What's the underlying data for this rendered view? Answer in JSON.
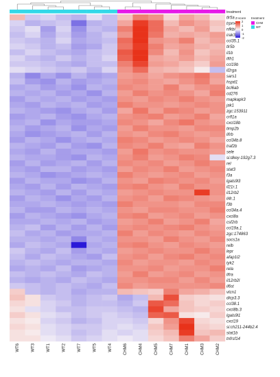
{
  "chart_data": {
    "type": "heatmap",
    "annotation_title": "treatment",
    "colorbar_title": "Z-score",
    "colorbar_ticks": [
      "2",
      "1",
      "0",
      "-1",
      "-2"
    ],
    "colorbar_range": [
      -2,
      2
    ],
    "colors": {
      "low": "#2a1ad8",
      "mid": "#f8f4f6",
      "high": "#e8321a",
      "CHM": "#e61ae8",
      "WT": "#34d8e8",
      "dendrogram": "#7a7a7a"
    },
    "legend": [
      {
        "label": "CHM",
        "color": "#e61ae8"
      },
      {
        "label": "WT",
        "color": "#34d8e8"
      }
    ],
    "columns": [
      "WT6",
      "WT3",
      "WT1",
      "WT2",
      "WT7",
      "WT5",
      "WT4",
      "CHM6",
      "CHM4",
      "CHM5",
      "CHM7",
      "CHM1",
      "CHM3",
      "CHM2"
    ],
    "column_groups": [
      "WT",
      "WT",
      "WT",
      "WT",
      "WT",
      "WT",
      "WT",
      "CHM",
      "CHM",
      "CHM",
      "CHM",
      "CHM",
      "CHM",
      "CHM"
    ],
    "rows": [
      "tlr5a",
      "trpm4a",
      "nfkbiaa",
      "irak3",
      "ccl35.1",
      "tlr5b",
      "il1b",
      "ifih1",
      "ccl19b",
      "il2rga",
      "sars1",
      "hspd1",
      "bcl6ab",
      "cd276",
      "mapkapk3",
      "jak1",
      "zgc:153911",
      "crfl1a",
      "cxcl18b",
      "timp2b",
      "lifrb",
      "ccl34b.8",
      "traf2b",
      "sele",
      "si:dkey-192g7.3",
      "rel",
      "stat3",
      "f3a",
      "lgals9l3",
      "il21r.1",
      "il12rb2",
      "il4r.1",
      "f3b",
      "ccl34a.4",
      "cxcl8a",
      "csf2rb",
      "ccl19a.1",
      "zgc:174863",
      "socs1a",
      "relb",
      "lepr",
      "afap1l2",
      "tyk2",
      "rela",
      "lifra",
      "il12rb2l",
      "il6st",
      "vtcn1",
      "dicp3.3",
      "ccl38.1",
      "cxcl8b.3",
      "lgals9l1",
      "cxcl19",
      "si:ch211-244b2.4",
      "stat1b",
      "tnfrsf14"
    ],
    "values": [
      [
        0.6,
        -0.4,
        -0.3,
        -0.5,
        -0.6,
        -0.2,
        -0.5,
        0.5,
        1.2,
        1.0,
        0.3,
        0.8,
        0.6,
        0.2
      ],
      [
        -0.3,
        -0.6,
        -0.5,
        -0.4,
        -1.2,
        -0.6,
        -0.5,
        0.8,
        1.9,
        1.4,
        0.6,
        1.0,
        0.8,
        0.5
      ],
      [
        -0.4,
        -0.2,
        -0.8,
        -0.3,
        -0.9,
        -0.5,
        -0.6,
        1.2,
        2.2,
        1.4,
        0.8,
        0.6,
        0.9,
        0.4
      ],
      [
        -0.5,
        -0.3,
        -0.7,
        -0.4,
        -0.8,
        -0.6,
        -0.4,
        1.0,
        2.3,
        1.3,
        0.7,
        0.8,
        0.7,
        0.9
      ],
      [
        -0.4,
        -0.5,
        -0.6,
        -0.3,
        -0.7,
        -0.6,
        -0.5,
        1.4,
        2.0,
        1.0,
        0.9,
        1.2,
        0.6,
        0.8
      ],
      [
        -0.3,
        -0.4,
        -0.6,
        -0.5,
        -0.8,
        -0.7,
        -0.4,
        1.3,
        1.9,
        1.2,
        0.8,
        0.9,
        0.7,
        0.6
      ],
      [
        -0.5,
        -0.3,
        -0.5,
        -0.6,
        -0.7,
        -0.5,
        -0.4,
        1.6,
        2.1,
        1.1,
        0.6,
        1.0,
        0.5,
        0.7
      ],
      [
        -0.3,
        -0.5,
        -0.6,
        -0.4,
        -0.6,
        -0.5,
        -0.3,
        1.5,
        2.0,
        0.8,
        0.7,
        0.9,
        0.6,
        0.8
      ],
      [
        -0.4,
        -0.4,
        -0.5,
        -0.6,
        -0.7,
        -0.5,
        -0.5,
        1.2,
        1.8,
        0.9,
        0.8,
        0.6,
        0.4,
        0.9
      ],
      [
        -0.2,
        -0.3,
        -0.4,
        -0.5,
        -0.4,
        -0.6,
        -0.3,
        1.0,
        1.4,
        0.7,
        0.6,
        0.5,
        0.1,
        -0.5
      ],
      [
        -0.6,
        -1.0,
        -0.7,
        -0.9,
        -0.6,
        -0.8,
        -0.7,
        0.9,
        1.0,
        0.8,
        1.0,
        1.1,
        1.3,
        0.9
      ],
      [
        -0.5,
        -0.8,
        -0.9,
        -0.6,
        -0.8,
        -0.7,
        -0.6,
        1.0,
        1.1,
        0.9,
        0.8,
        1.0,
        1.2,
        0.8
      ],
      [
        -0.7,
        -0.6,
        -0.8,
        -0.7,
        -0.9,
        -0.6,
        -0.7,
        1.1,
        1.0,
        0.9,
        1.2,
        0.8,
        1.0,
        1.1
      ],
      [
        -0.6,
        -0.7,
        -0.6,
        -0.8,
        -0.7,
        -0.9,
        -0.6,
        0.9,
        1.2,
        1.0,
        1.1,
        1.0,
        0.8,
        1.2
      ],
      [
        -0.8,
        -0.6,
        -0.7,
        -0.6,
        -0.8,
        -0.7,
        -0.8,
        1.0,
        0.9,
        1.1,
        1.0,
        1.2,
        1.0,
        0.9
      ],
      [
        -0.7,
        -0.8,
        -0.6,
        -0.7,
        -0.6,
        -0.8,
        -0.7,
        1.2,
        1.0,
        1.0,
        0.9,
        1.0,
        1.1,
        1.0
      ],
      [
        -0.6,
        -0.7,
        -0.8,
        -0.9,
        -0.7,
        -0.6,
        -0.8,
        0.8,
        1.3,
        0.9,
        1.2,
        1.1,
        0.9,
        1.0
      ],
      [
        -0.8,
        -0.7,
        -0.6,
        -0.8,
        -0.9,
        -0.7,
        -0.6,
        1.0,
        1.1,
        1.2,
        0.9,
        1.0,
        1.2,
        0.8
      ],
      [
        -0.7,
        -0.6,
        -0.9,
        -0.7,
        -0.8,
        -0.8,
        -0.7,
        1.1,
        1.0,
        0.8,
        1.1,
        1.3,
        1.0,
        0.9
      ],
      [
        -0.6,
        -0.8,
        -0.7,
        -0.6,
        -0.9,
        -0.7,
        -0.8,
        0.9,
        1.2,
        1.0,
        1.0,
        0.9,
        1.1,
        1.1
      ],
      [
        -0.7,
        -0.9,
        -0.8,
        -0.7,
        -0.6,
        -0.8,
        -0.6,
        1.0,
        0.9,
        1.1,
        1.2,
        1.0,
        0.9,
        1.0
      ],
      [
        -0.8,
        -0.6,
        -0.7,
        -0.9,
        -0.7,
        -0.6,
        -0.7,
        1.2,
        1.1,
        0.9,
        1.0,
        1.1,
        1.0,
        0.8
      ],
      [
        -0.6,
        -0.7,
        -0.8,
        -0.6,
        -0.8,
        -0.9,
        -0.6,
        1.1,
        1.0,
        1.2,
        0.9,
        0.8,
        1.2,
        1.0
      ],
      [
        -0.7,
        -0.8,
        -0.6,
        -0.8,
        -0.7,
        -0.7,
        -0.8,
        0.9,
        1.3,
        1.0,
        1.1,
        1.0,
        1.0,
        0.9
      ],
      [
        -0.6,
        -0.7,
        -0.7,
        -0.8,
        -0.9,
        -0.6,
        -0.7,
        1.0,
        1.2,
        0.9,
        1.0,
        1.2,
        1.1,
        -0.2
      ],
      [
        -0.8,
        -0.6,
        -0.8,
        -0.7,
        -0.6,
        -0.8,
        -0.6,
        1.1,
        1.0,
        1.1,
        0.9,
        1.0,
        1.2,
        1.0
      ],
      [
        -0.7,
        -0.8,
        -0.6,
        -0.6,
        -0.8,
        -0.7,
        -0.8,
        0.9,
        1.1,
        1.0,
        1.2,
        0.9,
        1.0,
        1.1
      ],
      [
        -0.6,
        -0.7,
        -0.9,
        -0.8,
        -0.7,
        -0.6,
        -0.7,
        1.2,
        1.0,
        0.9,
        1.0,
        1.1,
        0.9,
        1.0
      ],
      [
        -0.8,
        -0.6,
        -0.7,
        -0.7,
        -0.9,
        -0.8,
        -0.6,
        1.0,
        0.9,
        1.2,
        1.1,
        1.0,
        1.1,
        0.9
      ],
      [
        -0.7,
        -0.8,
        -0.6,
        -0.8,
        -0.6,
        -0.7,
        -0.8,
        1.1,
        1.2,
        1.0,
        0.9,
        1.2,
        1.0,
        1.0
      ],
      [
        -0.6,
        -0.7,
        -0.8,
        -0.6,
        -0.8,
        -0.6,
        -0.7,
        0.9,
        1.0,
        1.1,
        1.0,
        1.0,
        1.9,
        1.0
      ],
      [
        -0.8,
        -0.6,
        -0.7,
        -0.9,
        -0.7,
        -0.8,
        -0.6,
        1.0,
        1.1,
        0.9,
        1.2,
        1.1,
        1.0,
        0.9
      ],
      [
        -0.7,
        -0.7,
        -0.6,
        -0.7,
        -0.8,
        -0.7,
        -0.8,
        1.2,
        1.0,
        1.0,
        1.0,
        0.9,
        1.1,
        1.1
      ],
      [
        -0.6,
        -0.8,
        -0.8,
        -0.6,
        -0.7,
        -0.6,
        -0.7,
        1.0,
        0.9,
        1.1,
        1.1,
        1.0,
        1.0,
        1.2
      ],
      [
        -0.8,
        -0.6,
        -0.7,
        -0.8,
        -0.9,
        -0.7,
        -0.6,
        1.1,
        1.2,
        0.9,
        1.0,
        1.1,
        0.9,
        1.0
      ],
      [
        -0.7,
        -0.7,
        -0.6,
        -0.7,
        -0.6,
        -0.8,
        -0.7,
        0.9,
        1.0,
        1.2,
        0.9,
        1.0,
        1.2,
        0.8
      ],
      [
        -0.6,
        -0.5,
        -0.8,
        -0.6,
        -0.8,
        -0.6,
        -0.8,
        1.0,
        1.1,
        1.0,
        1.1,
        1.2,
        1.0,
        0.9
      ],
      [
        -0.5,
        -0.7,
        -0.6,
        -0.8,
        -0.7,
        -0.7,
        -0.6,
        1.2,
        0.9,
        1.1,
        1.0,
        0.9,
        1.1,
        1.0
      ],
      [
        -0.6,
        -0.6,
        -0.7,
        -0.6,
        -1.0,
        -0.6,
        -0.7,
        1.0,
        1.0,
        0.9,
        1.2,
        1.0,
        0.9,
        1.1
      ],
      [
        -0.7,
        -0.5,
        -0.6,
        -0.7,
        -2.2,
        -0.7,
        -0.6,
        1.1,
        1.2,
        1.0,
        0.9,
        1.1,
        1.0,
        0.9
      ],
      [
        -0.4,
        -0.6,
        -0.7,
        -0.5,
        -0.8,
        -0.6,
        -0.7,
        0.9,
        1.0,
        1.1,
        1.0,
        1.0,
        1.2,
        1.0
      ],
      [
        -0.5,
        -0.7,
        -0.5,
        -0.6,
        -0.7,
        -0.8,
        -0.5,
        1.0,
        1.1,
        0.9,
        1.1,
        1.2,
        1.0,
        1.1
      ],
      [
        -0.6,
        -0.5,
        -0.6,
        -0.7,
        -0.6,
        -0.6,
        -0.7,
        1.1,
        0.9,
        1.0,
        1.0,
        0.9,
        1.1,
        1.0
      ],
      [
        -0.7,
        -0.6,
        -0.7,
        -0.5,
        -0.8,
        -0.7,
        -0.6,
        1.0,
        1.0,
        1.1,
        0.9,
        1.0,
        1.0,
        1.2
      ],
      [
        -0.5,
        -0.6,
        -0.5,
        -0.6,
        -0.7,
        -0.5,
        -0.6,
        0.9,
        1.2,
        0.9,
        1.0,
        1.1,
        0.9,
        1.0
      ],
      [
        -0.6,
        -0.7,
        -0.6,
        -0.7,
        -0.5,
        -0.6,
        -0.7,
        1.0,
        1.0,
        1.1,
        1.1,
        0.9,
        1.1,
        0.9
      ],
      [
        -0.4,
        -0.5,
        -0.6,
        -0.5,
        -0.6,
        -0.7,
        -0.5,
        1.1,
        0.9,
        1.0,
        1.0,
        1.0,
        1.0,
        1.1
      ],
      [
        0.4,
        -0.5,
        -0.6,
        -0.5,
        -0.7,
        -0.6,
        -0.6,
        0.6,
        0.5,
        0.4,
        1.2,
        0.8,
        0.7,
        0.5
      ],
      [
        0.5,
        0.2,
        -0.4,
        -0.5,
        -0.6,
        -0.5,
        -0.4,
        -0.7,
        -0.5,
        0.6,
        1.7,
        0.4,
        0.3,
        0.2
      ],
      [
        0.3,
        0.2,
        -0.3,
        -0.4,
        -0.6,
        -0.5,
        -0.5,
        -0.6,
        -0.4,
        1.6,
        1.4,
        0.5,
        0.3,
        0.4
      ],
      [
        0.2,
        -0.2,
        -0.3,
        -0.5,
        -0.5,
        -0.4,
        -0.4,
        -0.5,
        -0.6,
        1.8,
        0.8,
        0.5,
        0.4,
        0.3
      ],
      [
        0.4,
        0.2,
        -0.2,
        -0.3,
        -0.5,
        -0.4,
        -0.3,
        -0.4,
        -0.5,
        1.5,
        1.6,
        0.2,
        0.1,
        0.4
      ],
      [
        0.2,
        0.1,
        -0.3,
        -0.4,
        -0.6,
        -0.5,
        -0.3,
        -0.3,
        -0.4,
        0.3,
        1.0,
        1.8,
        0.3,
        0.2
      ],
      [
        0.3,
        0.2,
        -0.2,
        -0.3,
        -0.4,
        -0.4,
        -0.3,
        -0.2,
        -0.3,
        0.5,
        0.9,
        2.0,
        0.4,
        0.3
      ],
      [
        0.2,
        0.1,
        -0.2,
        -0.3,
        -0.5,
        -0.4,
        -0.2,
        -0.3,
        -0.2,
        0.4,
        0.6,
        1.9,
        0.5,
        0.6
      ],
      [
        0.2,
        0.2,
        -0.1,
        -0.2,
        -0.4,
        -0.3,
        -0.2,
        -0.1,
        -0.2,
        0.3,
        0.5,
        1.2,
        0.8,
        0.4
      ]
    ]
  }
}
